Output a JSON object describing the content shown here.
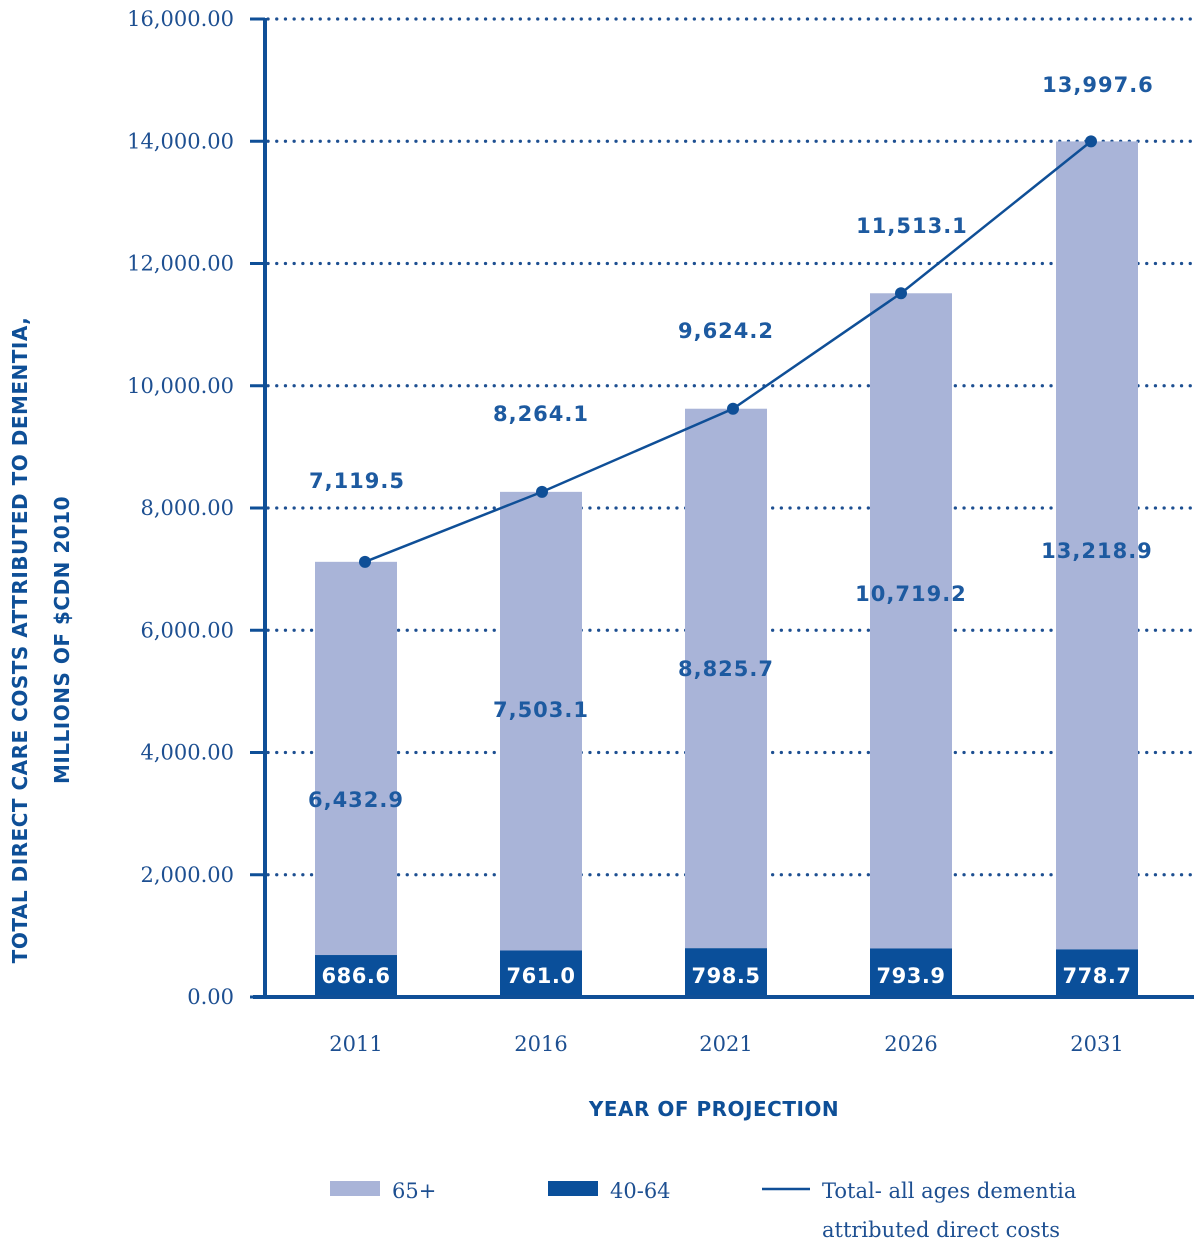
{
  "chart_data": {
    "type": "bar",
    "stacked": true,
    "categories": [
      "2011",
      "2016",
      "2021",
      "2026",
      "2031"
    ],
    "series": [
      {
        "name": "40-64",
        "values": [
          686.6,
          761.0,
          798.5,
          793.9,
          778.7
        ],
        "labels": [
          "686.6",
          "761.0",
          "798.5",
          "793.9",
          "778.7"
        ]
      },
      {
        "name": "65+",
        "values": [
          6432.9,
          7503.1,
          8825.7,
          10719.2,
          13218.9
        ],
        "labels": [
          "6,432.9",
          "7,503.1",
          "8,825.7",
          "10,719.2",
          "13,218.9"
        ]
      }
    ],
    "line_series": {
      "name": "Total- all ages dementia attributed direct costs",
      "values": [
        7119.5,
        8264.1,
        9624.2,
        11513.1,
        13997.6
      ],
      "labels": [
        "7,119.5",
        "8,264.1",
        "9,624.2",
        "11,513.1",
        "13,997.6"
      ]
    },
    "y_ticks": [
      0,
      2000,
      4000,
      6000,
      8000,
      10000,
      12000,
      14000,
      16000
    ],
    "y_tick_labels": [
      "0.00",
      "2,000.00",
      "4,000.00",
      "6,000.00",
      "8,000.00",
      "10,000.00",
      "12,000.00",
      "14,000.00",
      "16,000.00"
    ],
    "ylim": [
      0,
      16000
    ],
    "xlabel": "YEAR OF PROJECTION",
    "ylabel_line1": "TOTAL DIRECT CARE COSTS ATTRIBUTED TO DEMENTIA,",
    "ylabel_line2": "MILLIONS OF $CDN 2010",
    "grid": "horizontal-dotted",
    "legend_position": "bottom",
    "legend": {
      "item1": "65+",
      "item2": "40-64",
      "item3_line1": "Total- all ages dementia",
      "item3_line2": "attributed direct costs"
    },
    "colors": {
      "senior_bar": "#a9b4d8",
      "adult_bar": "#0a4f9a",
      "line": "#0f4f97",
      "axis": "#0f4f97",
      "text": "#1d5aa0"
    }
  }
}
